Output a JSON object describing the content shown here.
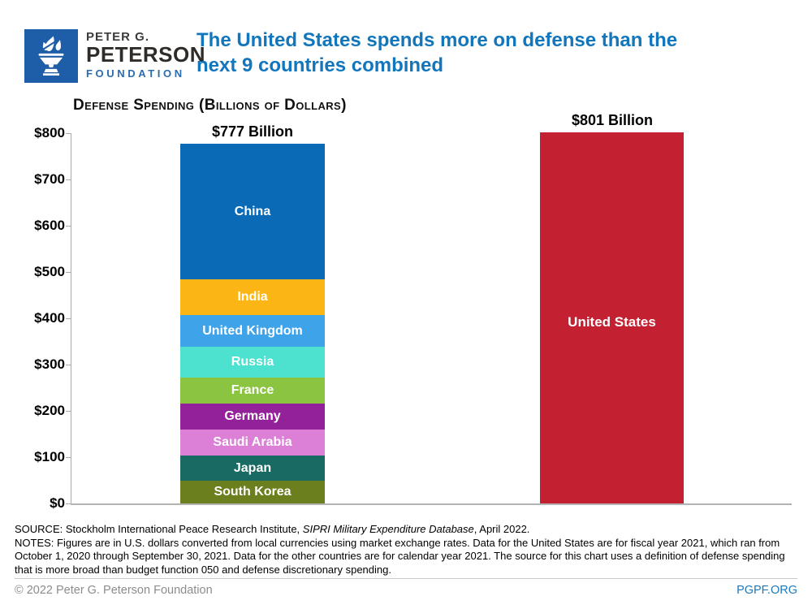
{
  "header": {
    "logo": {
      "line1": "PETER G.",
      "line2": "PETERSON",
      "line3": "FOUNDATION"
    },
    "title_line1": "The United States spends more on defense than the",
    "title_line2": "next 9 countries combined"
  },
  "chart_data": {
    "type": "bar",
    "title": "Defense Spending (Billions of Dollars)",
    "ylim": [
      0,
      800
    ],
    "y_ticks": [
      "$800",
      "$700",
      "$600",
      "$500",
      "$400",
      "$300",
      "$200",
      "$100",
      "$0"
    ],
    "grid": false,
    "legend": "labels inside bar segments",
    "columns": [
      {
        "id": "next9",
        "value_label": "$777 Billion",
        "total": 777,
        "segments_top_to_bottom": [
          {
            "name": "China",
            "value": 293,
            "color": "#0A6AB5"
          },
          {
            "name": "India",
            "value": 77,
            "color": "#FBB616"
          },
          {
            "name": "United Kingdom",
            "value": 68,
            "color": "#3FA3EA"
          },
          {
            "name": "Russia",
            "value": 66,
            "color": "#4DE1CF"
          },
          {
            "name": "France",
            "value": 57,
            "color": "#8AC440"
          },
          {
            "name": "Germany",
            "value": 56,
            "color": "#93229A"
          },
          {
            "name": "Saudi Arabia",
            "value": 56,
            "color": "#DC7FD6"
          },
          {
            "name": "Japan",
            "value": 54,
            "color": "#186A62"
          },
          {
            "name": "South Korea",
            "value": 50,
            "color": "#6B7F1E"
          }
        ]
      },
      {
        "id": "us",
        "value_label": "$801 Billion",
        "name": "United States",
        "value": 801,
        "color": "#C32032"
      }
    ]
  },
  "source": {
    "line1_prefix": "SOURCE: Stockholm International Peace Research Institute, ",
    "line1_italic": "SIPRI Military Expenditure Database",
    "line1_suffix": ", April 2022.",
    "notes": "NOTES: Figures are in U.S. dollars converted from local currencies using market exchange rates. Data for the United States are for fiscal year 2021, which ran from October 1, 2020 through September 30, 2021. Data for the other countries are for calendar year 2021. The source for this chart uses a definition of defense spending that is more broad than budget function 050 and defense discretionary spending."
  },
  "footer": {
    "copyright": "© 2022 Peter G. Peterson Foundation",
    "site": "PGPF.ORG"
  },
  "colors": {
    "title_blue": "#1176BC",
    "logo_blue": "#1E5DA8",
    "axis_gray": "#A9A9A9",
    "footer_gray": "#8C8C8C",
    "link_blue": "#1C78BE"
  }
}
